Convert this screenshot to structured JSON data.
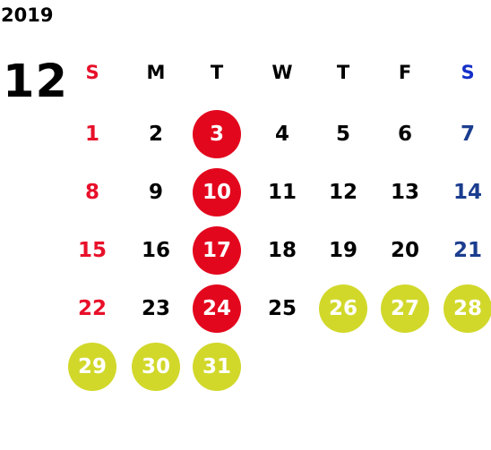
{
  "year": "2019",
  "month": "12",
  "weekday_headers": [
    "S",
    "M",
    "T",
    "W",
    "T",
    "F",
    "S"
  ],
  "weeks": [
    [
      "",
      "",
      "",
      "",
      "",
      "",
      ""
    ],
    [
      "1",
      "2",
      "3",
      "4",
      "5",
      "6",
      "7"
    ],
    [
      "8",
      "9",
      "10",
      "11",
      "12",
      "13",
      "14"
    ],
    [
      "15",
      "16",
      "17",
      "18",
      "19",
      "20",
      "21"
    ],
    [
      "22",
      "23",
      "24",
      "25",
      "26",
      "27",
      "28"
    ],
    [
      "29",
      "30",
      "31",
      "",
      "",
      "",
      ""
    ]
  ],
  "colors": {
    "sunday": "#e8102a",
    "saturday_header": "#1530c8",
    "saturday": "#1b3d8f",
    "red_circle": "#e3071d",
    "yellow_circle": "#d1d82a"
  },
  "red_circle_days": [
    "3",
    "10",
    "17",
    "24"
  ],
  "yellow_circle_days": [
    "26",
    "27",
    "28",
    "29",
    "30",
    "31"
  ]
}
